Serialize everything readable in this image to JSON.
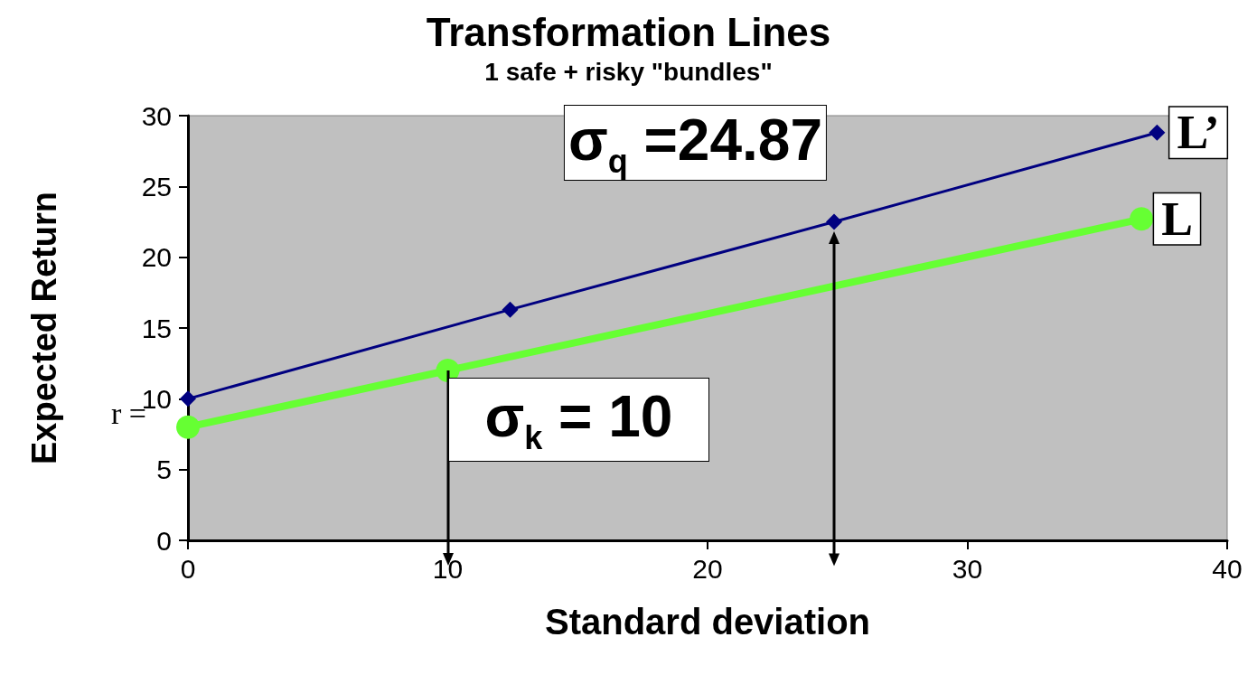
{
  "chart_data": {
    "type": "line",
    "title": "Transformation Lines",
    "subtitle": "1 safe + risky \"bundles\"",
    "xlabel": "Standard deviation",
    "ylabel": "Expected Return",
    "series": [
      {
        "name": "L’",
        "color": "#000080",
        "marker": "diamond",
        "x": [
          0,
          12.4,
          24.87,
          37.3
        ],
        "values": [
          10,
          16.3,
          22.5,
          28.8
        ]
      },
      {
        "name": "L",
        "color": "#66ff33",
        "marker": "circle",
        "x": [
          0,
          10,
          36.7
        ],
        "values": [
          8,
          12,
          22.7
        ]
      }
    ],
    "annotations": [
      {
        "text": "σ$_{q}$ =24.87",
        "x": 24.87,
        "y": 22.5
      },
      {
        "text": "σ$_{k}$ = 10",
        "x": 10,
        "y": 12
      },
      "r ="
    ],
    "xlim": [
      0,
      40
    ],
    "xticks": [
      0,
      10,
      20,
      30,
      40
    ],
    "ylim": [
      0,
      30
    ],
    "yticks": [
      0,
      5,
      10,
      15,
      20,
      25,
      30
    ],
    "grid": false,
    "legend": false
  }
}
